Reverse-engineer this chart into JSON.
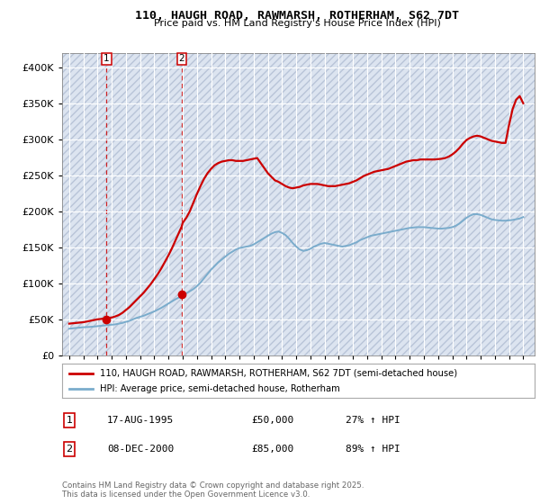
{
  "title_line1": "110, HAUGH ROAD, RAWMARSH, ROTHERHAM, S62 7DT",
  "title_line2": "Price paid vs. HM Land Registry's House Price Index (HPI)",
  "plot_bg_color": "#dce4f0",
  "hatch_color": "#b8c4d8",
  "grid_color": "#ffffff",
  "red_line_color": "#cc0000",
  "blue_line_color": "#7aaccc",
  "transaction1_date": 1995.63,
  "transaction1_price": 50000,
  "transaction2_date": 2000.93,
  "transaction2_price": 85000,
  "legend_entry1": "110, HAUGH ROAD, RAWMARSH, ROTHERHAM, S62 7DT (semi-detached house)",
  "legend_entry2": "HPI: Average price, semi-detached house, Rotherham",
  "annotation1_date": "17-AUG-1995",
  "annotation1_price": "£50,000",
  "annotation1_hpi": "27% ↑ HPI",
  "annotation2_date": "08-DEC-2000",
  "annotation2_price": "£85,000",
  "annotation2_hpi": "89% ↑ HPI",
  "copyright_text": "Contains HM Land Registry data © Crown copyright and database right 2025.\nThis data is licensed under the Open Government Licence v3.0.",
  "ylim_max": 420000,
  "xmin": 1992.5,
  "xmax": 2025.8,
  "hpi_years": [
    1993,
    1993.25,
    1993.5,
    1993.75,
    1994,
    1994.25,
    1994.5,
    1994.75,
    1995,
    1995.25,
    1995.5,
    1995.63,
    1996,
    1996.25,
    1996.5,
    1996.75,
    1997,
    1997.25,
    1997.5,
    1997.75,
    1998,
    1998.25,
    1998.5,
    1998.75,
    1999,
    1999.25,
    1999.5,
    1999.75,
    2000,
    2000.25,
    2000.5,
    2000.75,
    2000.93,
    2001,
    2001.25,
    2001.5,
    2001.75,
    2002,
    2002.25,
    2002.5,
    2002.75,
    2003,
    2003.25,
    2003.5,
    2003.75,
    2004,
    2004.25,
    2004.5,
    2004.75,
    2005,
    2005.25,
    2005.5,
    2005.75,
    2006,
    2006.25,
    2006.5,
    2006.75,
    2007,
    2007.25,
    2007.5,
    2007.75,
    2008,
    2008.25,
    2008.5,
    2008.75,
    2009,
    2009.25,
    2009.5,
    2009.75,
    2010,
    2010.25,
    2010.5,
    2010.75,
    2011,
    2011.25,
    2011.5,
    2011.75,
    2012,
    2012.25,
    2012.5,
    2012.75,
    2013,
    2013.25,
    2013.5,
    2013.75,
    2014,
    2014.25,
    2014.5,
    2014.75,
    2015,
    2015.25,
    2015.5,
    2015.75,
    2016,
    2016.25,
    2016.5,
    2016.75,
    2017,
    2017.25,
    2017.5,
    2017.75,
    2018,
    2018.25,
    2018.5,
    2018.75,
    2019,
    2019.25,
    2019.5,
    2019.75,
    2020,
    2020.25,
    2020.5,
    2020.75,
    2021,
    2021.25,
    2021.5,
    2021.75,
    2022,
    2022.25,
    2022.5,
    2022.75,
    2023,
    2023.25,
    2023.5,
    2023.75,
    2024,
    2024.25,
    2024.5,
    2024.75,
    2025
  ],
  "hpi_values": [
    37000,
    37500,
    38000,
    38500,
    39000,
    39200,
    39500,
    40000,
    40500,
    41000,
    41500,
    42000,
    42500,
    43000,
    44000,
    45000,
    46500,
    48000,
    50000,
    52000,
    53500,
    55000,
    57000,
    59000,
    61000,
    63500,
    66000,
    69000,
    72000,
    75000,
    78000,
    80500,
    82000,
    83500,
    86000,
    89000,
    92000,
    96000,
    101000,
    107000,
    113000,
    119000,
    124000,
    129000,
    133000,
    137000,
    141000,
    144000,
    147000,
    149000,
    150000,
    151000,
    152000,
    154000,
    157000,
    160000,
    163000,
    166000,
    169000,
    171000,
    172000,
    170000,
    167000,
    162000,
    156000,
    151000,
    147000,
    145000,
    146000,
    148000,
    151000,
    153000,
    155000,
    156000,
    155000,
    154000,
    153000,
    152000,
    151000,
    152000,
    153000,
    155000,
    157000,
    160000,
    162000,
    164000,
    166000,
    167000,
    168000,
    169000,
    170000,
    171000,
    172000,
    173000,
    174000,
    175000,
    176000,
    177000,
    177500,
    178000,
    178000,
    178000,
    177500,
    177000,
    176500,
    176000,
    176000,
    176500,
    177000,
    178000,
    180000,
    183000,
    187000,
    191000,
    194000,
    196000,
    196000,
    195000,
    193000,
    191000,
    189000,
    188000,
    187500,
    187000,
    187000,
    187500,
    188000,
    189000,
    190000,
    192000
  ],
  "price_years": [
    1993,
    1993.25,
    1993.5,
    1993.75,
    1994,
    1994.25,
    1994.5,
    1994.75,
    1995,
    1995.25,
    1995.5,
    1995.63,
    1996,
    1996.25,
    1996.5,
    1996.75,
    1997,
    1997.25,
    1997.5,
    1997.75,
    1998,
    1998.25,
    1998.5,
    1998.75,
    1999,
    1999.25,
    1999.5,
    1999.75,
    2000,
    2000.25,
    2000.5,
    2000.75,
    2000.93,
    2001,
    2001.25,
    2001.5,
    2001.75,
    2002,
    2002.25,
    2002.5,
    2002.75,
    2003,
    2003.25,
    2003.5,
    2003.75,
    2004,
    2004.25,
    2004.5,
    2004.75,
    2005,
    2005.25,
    2005.5,
    2005.75,
    2006,
    2006.25,
    2006.5,
    2006.75,
    2007,
    2007.25,
    2007.5,
    2007.75,
    2008,
    2008.25,
    2008.5,
    2008.75,
    2009,
    2009.25,
    2009.5,
    2009.75,
    2010,
    2010.25,
    2010.5,
    2010.75,
    2011,
    2011.25,
    2011.5,
    2011.75,
    2012,
    2012.25,
    2012.5,
    2012.75,
    2013,
    2013.25,
    2013.5,
    2013.75,
    2014,
    2014.25,
    2014.5,
    2014.75,
    2015,
    2015.25,
    2015.5,
    2015.75,
    2016,
    2016.25,
    2016.5,
    2016.75,
    2017,
    2017.25,
    2017.5,
    2017.75,
    2018,
    2018.25,
    2018.5,
    2018.75,
    2019,
    2019.25,
    2019.5,
    2019.75,
    2020,
    2020.25,
    2020.5,
    2020.75,
    2021,
    2021.25,
    2021.5,
    2021.75,
    2022,
    2022.25,
    2022.5,
    2022.75,
    2023,
    2023.25,
    2023.5,
    2023.75,
    2024,
    2024.25,
    2024.5,
    2024.75,
    2025
  ],
  "price_values": [
    44000,
    44500,
    45000,
    45500,
    46000,
    47000,
    48000,
    49000,
    50000,
    50500,
    51000,
    51500,
    52500,
    54000,
    56000,
    59000,
    63000,
    67000,
    72000,
    77000,
    82000,
    87000,
    93000,
    99000,
    106000,
    113000,
    121000,
    130000,
    139000,
    149000,
    160000,
    171000,
    179000,
    184000,
    191000,
    200000,
    212000,
    224000,
    235000,
    245000,
    253000,
    259000,
    264000,
    267000,
    269000,
    270000,
    271000,
    271000,
    270000,
    270000,
    270000,
    271000,
    272000,
    273000,
    274000,
    267000,
    260000,
    253000,
    248000,
    243000,
    241000,
    238000,
    235000,
    233000,
    232000,
    233000,
    234000,
    236000,
    237000,
    238000,
    238000,
    238000,
    237000,
    236000,
    235000,
    235000,
    235000,
    236000,
    237000,
    238000,
    239000,
    241000,
    243000,
    246000,
    249000,
    251000,
    253000,
    255000,
    256000,
    257000,
    258000,
    259000,
    261000,
    263000,
    265000,
    267000,
    269000,
    270000,
    271000,
    271000,
    272000,
    272000,
    272000,
    272000,
    272000,
    272500,
    273000,
    274000,
    276000,
    279000,
    283000,
    288000,
    294000,
    299000,
    302000,
    304000,
    305000,
    304000,
    302000,
    300000,
    298000,
    297000,
    296000,
    295000,
    295000,
    320000,
    342000,
    355000,
    360000,
    350000
  ]
}
